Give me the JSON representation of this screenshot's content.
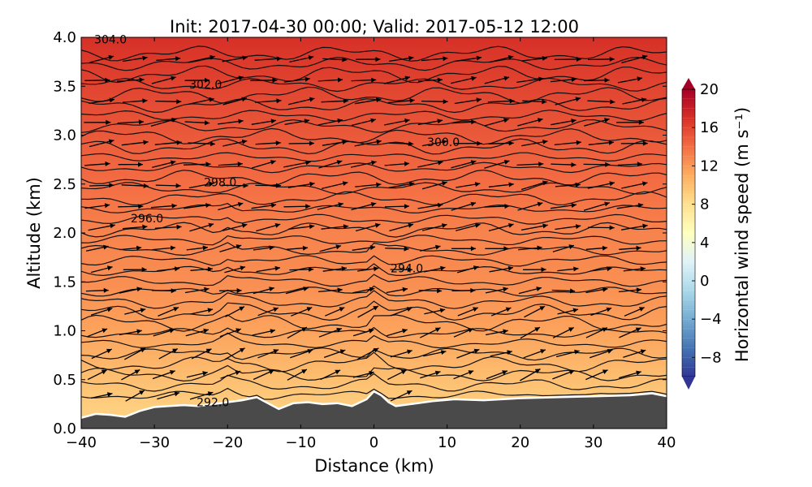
{
  "chart_data": {
    "type": "heatmap",
    "title": "Init: 2017-04-30 00:00; Valid: 2017-05-12 12:00",
    "xlabel": "Distance (km)",
    "ylabel": "Altitude (km)",
    "xlim": [
      -40,
      40
    ],
    "ylim": [
      0.0,
      4.0
    ],
    "x_ticks": [
      "−40",
      "−30",
      "−20",
      "−10",
      "0",
      "10",
      "20",
      "30",
      "40"
    ],
    "x_tick_values": [
      -40,
      -30,
      -20,
      -10,
      0,
      10,
      20,
      30,
      40
    ],
    "y_ticks": [
      "0.0",
      "0.5",
      "1.0",
      "1.5",
      "2.0",
      "2.5",
      "3.0",
      "3.5",
      "4.0"
    ],
    "y_tick_values": [
      0.0,
      0.5,
      1.0,
      1.5,
      2.0,
      2.5,
      3.0,
      3.5,
      4.0
    ],
    "colorbar": {
      "label": "Horizontal wind speed (m s⁻¹)",
      "range": [
        -10,
        20
      ],
      "ticks": [
        "20",
        "16",
        "12",
        "8",
        "4",
        "0",
        "−4",
        "−8"
      ],
      "tick_values": [
        20,
        16,
        12,
        8,
        4,
        0,
        -4,
        -8
      ],
      "colormap": "RdYlBu_r"
    },
    "wind_speed_field": {
      "description_levels": "speed increases with altitude",
      "altitude_km": [
        0.2,
        0.5,
        1.0,
        1.5,
        2.0,
        2.5,
        3.0,
        3.5,
        4.0
      ],
      "speed_ms": [
        9,
        10,
        11.5,
        12.5,
        13,
        14,
        15,
        16,
        17
      ]
    },
    "theta_contour_labels": [
      {
        "text": "292.0",
        "x": -22,
        "y": 0.27
      },
      {
        "text": "294.0",
        "x": 4.5,
        "y": 1.64
      },
      {
        "text": "296.0",
        "x": -31,
        "y": 2.15
      },
      {
        "text": "298.0",
        "x": -21,
        "y": 2.52
      },
      {
        "text": "300.0",
        "x": 9.5,
        "y": 2.93
      },
      {
        "text": "302.0",
        "x": -23,
        "y": 3.52
      },
      {
        "text": "304.0",
        "x": -36,
        "y": 3.98
      }
    ],
    "terrain_height_km": {
      "x": [
        -40,
        -38,
        -36,
        -34,
        -32,
        -30,
        -28,
        -26,
        -24,
        -22,
        -20,
        -18,
        -16,
        -15,
        -13,
        -11,
        -9,
        -7,
        -5,
        -3,
        -1,
        0,
        1,
        2,
        3,
        5,
        8,
        11,
        15,
        20,
        25,
        30,
        35,
        38,
        40
      ],
      "y": [
        0.11,
        0.15,
        0.14,
        0.12,
        0.18,
        0.22,
        0.23,
        0.24,
        0.23,
        0.25,
        0.27,
        0.29,
        0.32,
        0.28,
        0.2,
        0.26,
        0.27,
        0.25,
        0.26,
        0.23,
        0.3,
        0.38,
        0.34,
        0.27,
        0.23,
        0.25,
        0.28,
        0.3,
        0.29,
        0.31,
        0.32,
        0.33,
        0.34,
        0.36,
        0.33
      ]
    },
    "colors": {
      "terrain": "#4a4a4a",
      "terrain_edge": "#ffffff",
      "contour": "#111111",
      "arrow": "#000000"
    }
  }
}
